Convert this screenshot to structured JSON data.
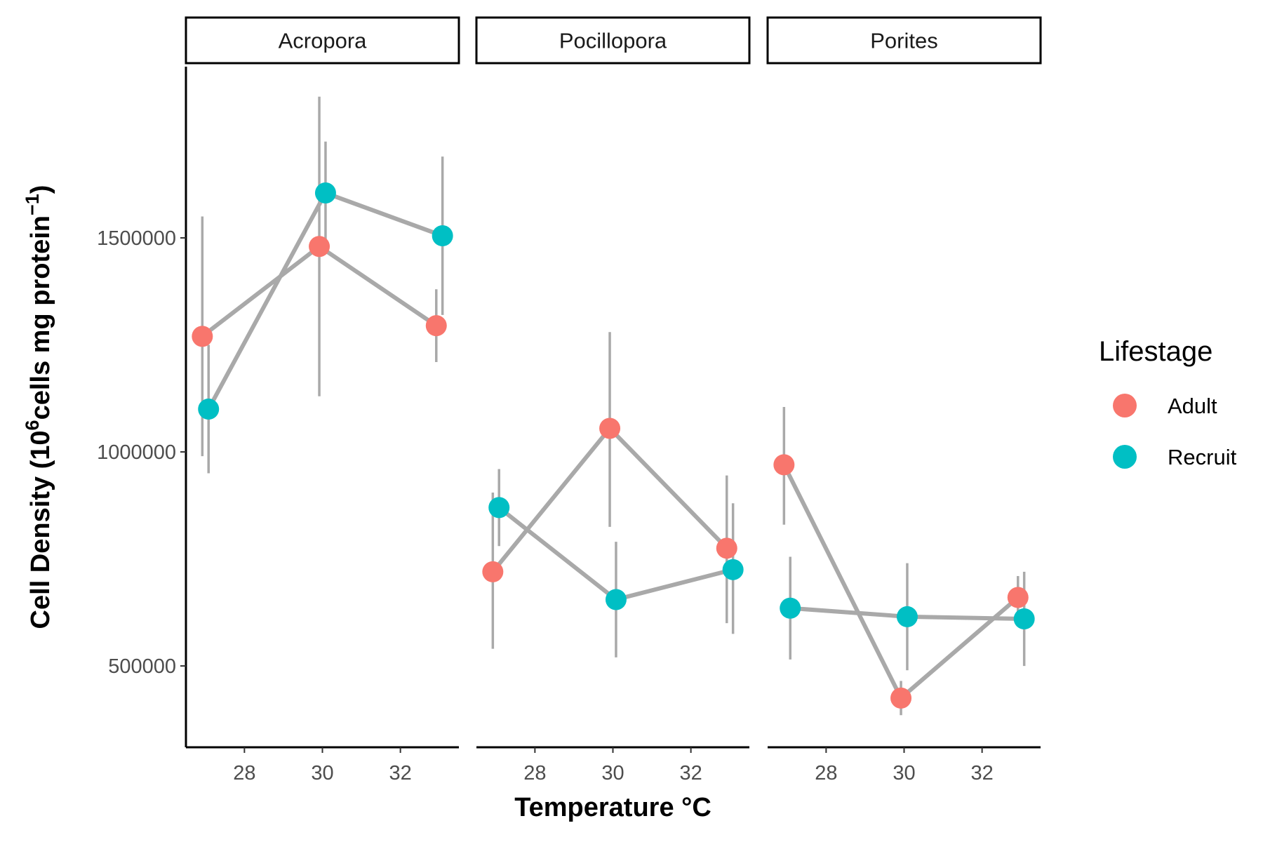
{
  "chart_data": {
    "type": "line",
    "facets": [
      "Acropora",
      "Pocillopora",
      "Porites"
    ],
    "xlabel": "Temperature °C",
    "ylabel": {
      "prefix": "Cell Density (10",
      "exp1": "6",
      "middle": "cells mg protein",
      "exp2": "−1",
      "suffix": ")"
    },
    "x_ticks": [
      28,
      30,
      32
    ],
    "xlim": [
      26.5,
      33.5
    ],
    "y_ticks": [
      500000,
      1000000,
      1500000
    ],
    "y_tick_labels": [
      "500000",
      "1000000",
      "1500000"
    ],
    "ylim": [
      310000,
      1900000
    ],
    "legend": {
      "title": "Lifestage",
      "position": "right",
      "entries": [
        {
          "name": "Adult",
          "color": "#F8766D"
        },
        {
          "name": "Recruit",
          "color": "#00BFC4"
        }
      ]
    },
    "line_color": "#a9a9a9",
    "series": [
      {
        "facet": "Acropora",
        "name": "Adult",
        "color": "#F8766D",
        "points": [
          {
            "x": 27,
            "y": 1270000,
            "ymin": 990000,
            "ymax": 1550000
          },
          {
            "x": 30,
            "y": 1480000,
            "ymin": 1130000,
            "ymax": 1830000
          },
          {
            "x": 33,
            "y": 1295000,
            "ymin": 1210000,
            "ymax": 1380000
          }
        ]
      },
      {
        "facet": "Acropora",
        "name": "Recruit",
        "color": "#00BFC4",
        "points": [
          {
            "x": 27,
            "y": 1100000,
            "ymin": 950000,
            "ymax": 1250000
          },
          {
            "x": 30,
            "y": 1605000,
            "ymin": 1480000,
            "ymax": 1725000
          },
          {
            "x": 33,
            "y": 1505000,
            "ymin": 1320000,
            "ymax": 1690000
          }
        ]
      },
      {
        "facet": "Pocillopora",
        "name": "Adult",
        "color": "#F8766D",
        "points": [
          {
            "x": 27,
            "y": 720000,
            "ymin": 540000,
            "ymax": 905000
          },
          {
            "x": 30,
            "y": 1055000,
            "ymin": 825000,
            "ymax": 1280000
          },
          {
            "x": 33,
            "y": 775000,
            "ymin": 600000,
            "ymax": 945000
          }
        ]
      },
      {
        "facet": "Pocillopora",
        "name": "Recruit",
        "color": "#00BFC4",
        "points": [
          {
            "x": 27,
            "y": 870000,
            "ymin": 780000,
            "ymax": 960000
          },
          {
            "x": 30,
            "y": 655000,
            "ymin": 520000,
            "ymax": 790000
          },
          {
            "x": 33,
            "y": 725000,
            "ymin": 575000,
            "ymax": 880000
          }
        ]
      },
      {
        "facet": "Porites",
        "name": "Adult",
        "color": "#F8766D",
        "points": [
          {
            "x": 27,
            "y": 970000,
            "ymin": 830000,
            "ymax": 1105000
          },
          {
            "x": 30,
            "y": 425000,
            "ymin": 385000,
            "ymax": 465000
          },
          {
            "x": 33,
            "y": 660000,
            "ymin": 610000,
            "ymax": 710000
          }
        ]
      },
      {
        "facet": "Porites",
        "name": "Recruit",
        "color": "#00BFC4",
        "points": [
          {
            "x": 27,
            "y": 635000,
            "ymin": 515000,
            "ymax": 755000
          },
          {
            "x": 30,
            "y": 615000,
            "ymin": 490000,
            "ymax": 740000
          },
          {
            "x": 33,
            "y": 610000,
            "ymin": 500000,
            "ymax": 720000
          }
        ]
      }
    ]
  }
}
